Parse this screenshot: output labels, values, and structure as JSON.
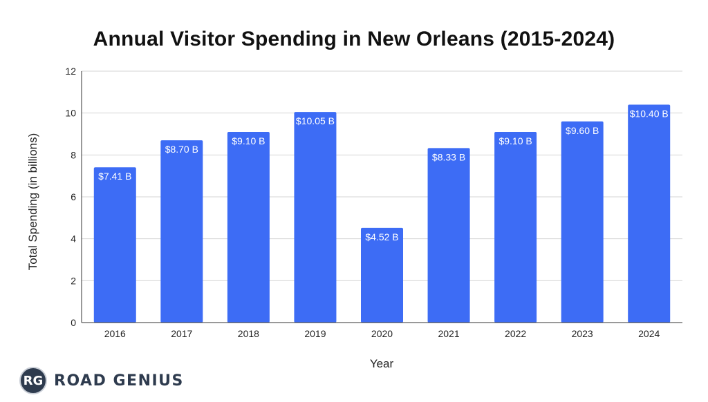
{
  "chart_data": {
    "type": "bar",
    "title": "Annual Visitor Spending in New Orleans (2015-2024)",
    "xlabel": "Year",
    "ylabel": "Total Spending (in billions)",
    "categories": [
      "2016",
      "2017",
      "2018",
      "2019",
      "2020",
      "2021",
      "2022",
      "2023",
      "2024"
    ],
    "values": [
      7.41,
      8.7,
      9.1,
      10.05,
      4.52,
      8.33,
      9.1,
      9.6,
      10.4
    ],
    "data_labels": [
      "$7.41 B",
      "$8.70 B",
      "$9.10 B",
      "$10.05 B",
      "$4.52 B",
      "$8.33 B",
      "$9.10 B",
      "$9.60 B",
      "$10.40 B"
    ],
    "ylim": [
      0,
      12
    ],
    "yticks": [
      0,
      2,
      4,
      6,
      8,
      10,
      12
    ],
    "grid": true,
    "bar_color": "#3d6cf5"
  },
  "brand": {
    "badge": "RG",
    "name": "ROAD GENIUS"
  }
}
